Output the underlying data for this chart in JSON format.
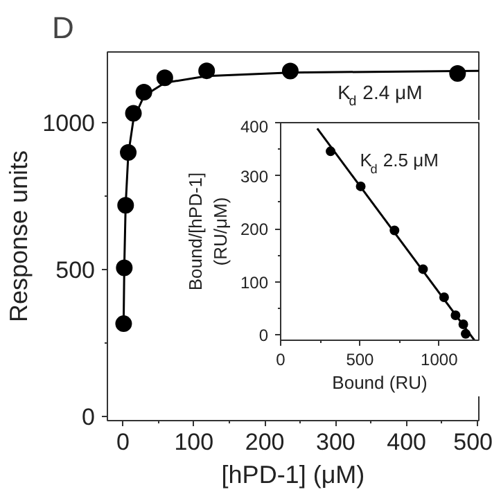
{
  "chart_data": [
    {
      "type": "scatter",
      "xlabel": "[hPD-1] (μM)",
      "ylabel": "Response units",
      "annotations": [
        "D",
        "K$_{d}$ 2.4 μM"
      ],
      "x": [
        0.9,
        1.8,
        3.7,
        7.4,
        14.7,
        29.5,
        59,
        118,
        236,
        472
      ],
      "series": [
        {
          "color": "#000000",
          "marker": "circle",
          "values": [
            315,
            505,
            718,
            898,
            1031,
            1103,
            1152,
            1176,
            1175,
            1167
          ]
        },
        {
          "type": "line",
          "color": "#000000",
          "x": [
            0.9,
            1.8,
            3.7,
            7.4,
            14.7,
            29.5,
            59,
            118,
            236,
            472,
            502
          ],
          "values": [
            322,
            506,
            717,
            890,
            1010,
            1090,
            1135,
            1158,
            1170,
            1175,
            1176
          ]
        }
      ],
      "xlim": [
        -22,
        502
      ],
      "ylim": [
        -15,
        1240
      ],
      "xticks": [
        0,
        100,
        200,
        300,
        400,
        500
      ],
      "yticks": [
        0,
        500,
        1000
      ],
      "grid": false
    },
    {
      "type": "scatter",
      "xlabel": "Bound (RU)",
      "ylabel": "Bound/[hPD-1]\n(RU/μM)",
      "annotations": [
        "K$_{d}$ 2.5 μM"
      ],
      "x": [
        315,
        505,
        718,
        898,
        1031,
        1103,
        1152,
        1167
      ],
      "series": [
        {
          "color": "#000000",
          "marker": "circle",
          "values": [
            346,
            280,
            197,
            124,
            71,
            37,
            20,
            2
          ]
        },
        {
          "type": "line",
          "color": "#000000",
          "x": [
            231,
            1222
          ],
          "values": [
            389,
            -10
          ]
        }
      ],
      "xlim": [
        0,
        1250
      ],
      "ylim": [
        -10,
        400
      ],
      "xticks": [
        0,
        500,
        1000
      ],
      "yticks": [
        0,
        100,
        200,
        300,
        400
      ],
      "grid": false
    }
  ]
}
